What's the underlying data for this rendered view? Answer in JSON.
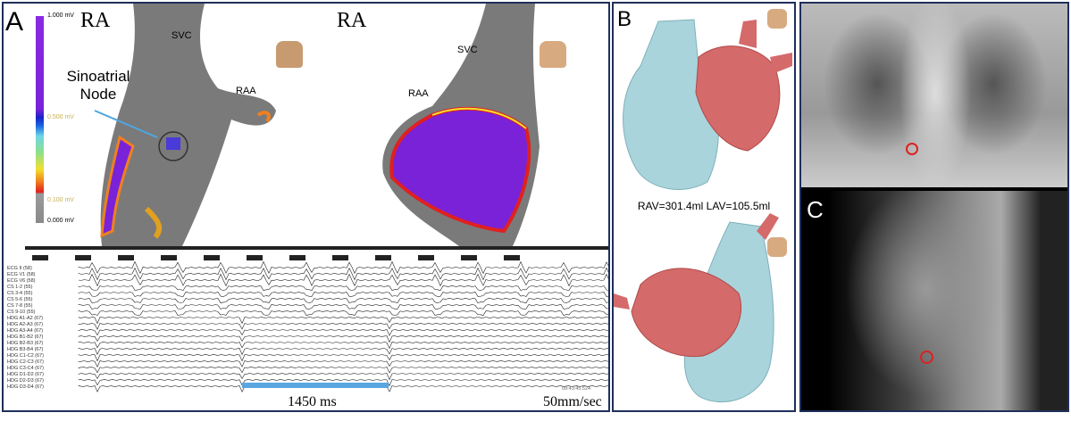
{
  "panel_a": {
    "label": "A",
    "colorbar": {
      "max": "1.000 mV",
      "mid": "0.500 mV",
      "low": "0.100 mV",
      "min": "0.000 mV"
    },
    "left_map": {
      "title": "RA",
      "svc": "SVC",
      "raa": "RAA",
      "annotation": "Sinoatrial Node"
    },
    "right_map": {
      "title": "RA",
      "svc": "SVC",
      "raa": "RAA"
    },
    "ecg": {
      "channels": [
        "ECG II (58)",
        "ECG V1 (58)",
        "ECG V6 (58)",
        "CS 1-2 (55)",
        "CS 3-4 (55)",
        "CS 5-6 (55)",
        "CS 7-8 (55)",
        "CS 9-10 (55)",
        "HDG A1-A2 (67)",
        "HDG A2-A3 (67)",
        "HDG A3-A4 (67)",
        "HDG B1-B2 (67)",
        "HDG B2-B3 (67)",
        "HDG B3-B4 (67)",
        "HDG C1-C2 (67)",
        "HDG C2-C3 (67)",
        "HDG C3-C4 (67)",
        "HDG D1-D2 (67)",
        "HDG D2-D3 (67)",
        "HDG D3-D4 (67)"
      ],
      "timestamp": "09:43:45.524",
      "interval_label": "1450 ms",
      "speed_label": "50mm/sec"
    }
  },
  "panel_b": {
    "label": "B",
    "volumes": "RAV=301.4ml LAV=105.5ml"
  },
  "panel_c": {
    "label": "C"
  },
  "colors": {
    "border": "#1f2f5a",
    "ra": "#a9d4dc",
    "la": "#d46a6a",
    "interval": "#5aa6e0",
    "scar": "#7a22d8"
  }
}
